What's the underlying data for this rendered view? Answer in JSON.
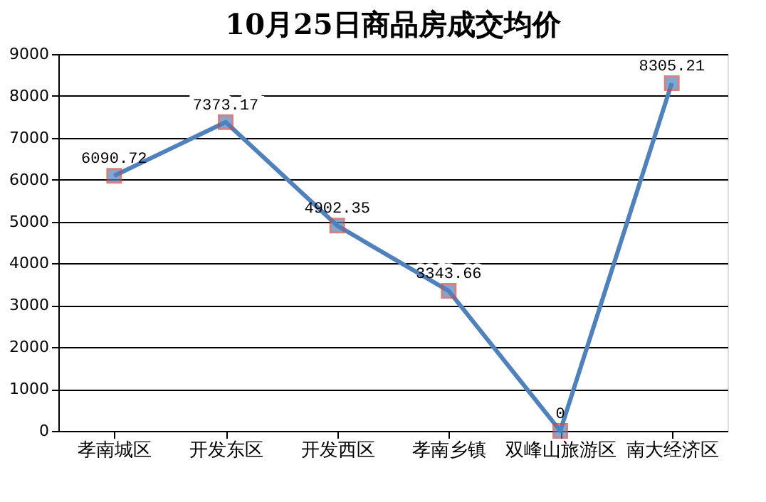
{
  "chart_data": {
    "type": "line",
    "title": "10月25日商品房成交均价",
    "categories": [
      "孝南城区",
      "开发东区",
      "开发西区",
      "孝南乡镇",
      "双峰山旅游区",
      "南大经济区"
    ],
    "series": [
      {
        "color": "#4f81bd",
        "values": [
          6090.72,
          7373.17,
          4902.35,
          3343.66,
          0,
          8305.21
        ]
      }
    ],
    "ylim": [
      0,
      9000
    ],
    "yticks": [
      0,
      1000,
      2000,
      3000,
      4000,
      5000,
      6000,
      7000,
      8000,
      9000
    ],
    "grid": "y",
    "marker": "square",
    "line_style": "solid",
    "data_labels": true
  }
}
